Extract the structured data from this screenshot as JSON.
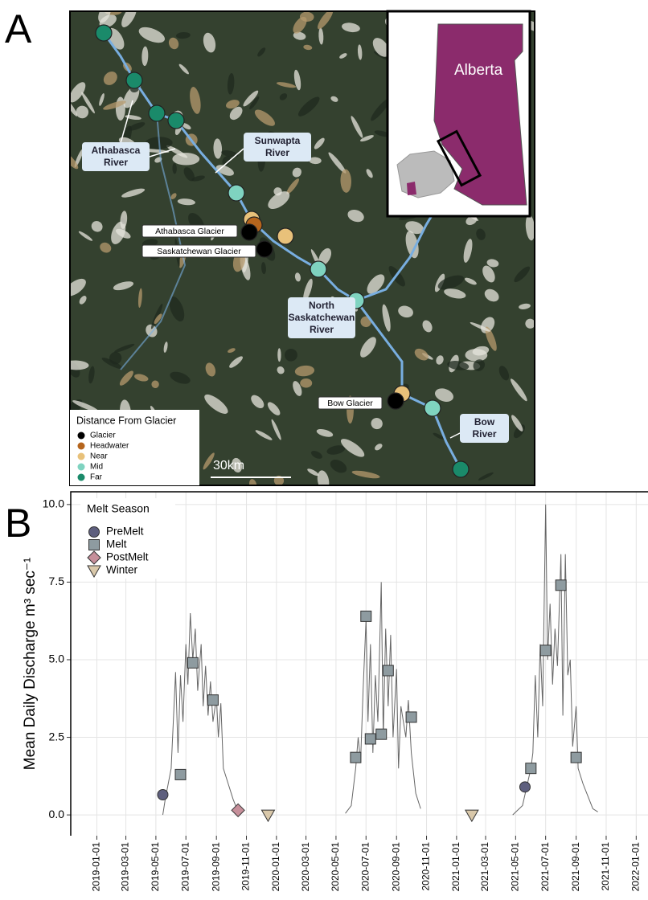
{
  "panel_a": {
    "label": "A",
    "river_labels": [
      {
        "lines": [
          "Athabasca",
          "River"
        ]
      },
      {
        "lines": [
          "Sunwapta",
          "River"
        ]
      },
      {
        "lines": [
          "North",
          "Saskatchewan",
          "River"
        ]
      },
      {
        "lines": [
          "Bow",
          "River"
        ]
      }
    ],
    "glacier_labels": [
      "Athabasca Glacier",
      "Saskatchewan Glacier",
      "Bow Glacier"
    ],
    "legend": {
      "title": "Distance From Glacier",
      "items": [
        "Glacier",
        "Headwater",
        "Near",
        "Mid",
        "Far"
      ]
    },
    "scale_bar": "30km",
    "inset_label": "Alberta"
  },
  "panel_b": {
    "label": "B"
  },
  "chart_data": {
    "type": "line",
    "ylabel": "Mean Daily Discharge m³ sec⁻¹",
    "legend_title": "Melt Season",
    "xlim": [
      "2018-11-09",
      "2022-01-25"
    ],
    "xticks": [
      "2019-01-01",
      "2019-03-01",
      "2019-05-01",
      "2019-07-01",
      "2019-09-01",
      "2019-11-01",
      "2020-01-01",
      "2020-03-01",
      "2020-05-01",
      "2020-07-01",
      "2020-09-01",
      "2020-11-01",
      "2021-01-01",
      "2021-03-01",
      "2021-05-01",
      "2021-07-01",
      "2021-09-01",
      "2021-11-01",
      "2022-01-01"
    ],
    "ylim": [
      -0.67,
      10.41
    ],
    "yticks": [
      {
        "value": 0,
        "label": "0.0"
      },
      {
        "value": 2.5,
        "label": "2.5"
      },
      {
        "value": 5,
        "label": "5.0"
      },
      {
        "value": 7.5,
        "label": "7.5"
      },
      {
        "value": 10,
        "label": "10.0"
      }
    ],
    "grid": true,
    "series": [
      {
        "color": "#666666",
        "x": [
          "2019-05-15",
          "2019-05-20",
          "2019-06-01",
          "2019-06-10",
          "2019-06-15",
          "2019-06-20",
          "2019-06-25",
          "2019-07-01",
          "2019-07-05",
          "2019-07-10",
          "2019-07-15",
          "2019-07-20",
          "2019-07-25",
          "2019-08-01",
          "2019-08-05",
          "2019-08-10",
          "2019-08-15",
          "2019-08-20",
          "2019-08-25",
          "2019-09-01",
          "2019-09-05",
          "2019-09-10",
          "2019-09-15",
          "2019-09-25",
          "2019-10-05",
          "2019-10-15",
          "2020-01-01",
          "2020-05-20",
          "2020-06-01",
          "2020-06-10",
          "2020-06-15",
          "2020-06-20",
          "2020-06-25",
          "2020-07-01",
          "2020-07-05",
          "2020-07-10",
          "2020-07-15",
          "2020-07-20",
          "2020-07-25",
          "2020-08-01",
          "2020-08-05",
          "2020-08-10",
          "2020-08-15",
          "2020-08-20",
          "2020-08-25",
          "2020-09-01",
          "2020-09-05",
          "2020-09-10",
          "2020-09-20",
          "2020-09-25",
          "2020-10-01",
          "2020-10-10",
          "2020-10-20",
          "2021-01-01",
          "2021-04-25",
          "2021-05-15",
          "2021-05-25",
          "2021-06-01",
          "2021-06-05",
          "2021-06-10",
          "2021-06-15",
          "2021-06-20",
          "2021-06-25",
          "2021-07-01",
          "2021-07-05",
          "2021-07-10",
          "2021-07-15",
          "2021-07-20",
          "2021-07-25",
          "2021-08-01",
          "2021-08-05",
          "2021-08-10",
          "2021-08-15",
          "2021-08-20",
          "2021-08-25",
          "2021-09-01",
          "2021-09-05",
          "2021-09-15",
          "2021-09-25",
          "2021-10-05",
          "2021-10-15"
        ],
        "values": [
          0,
          0.5,
          1.5,
          4.6,
          2.0,
          4.5,
          3.0,
          5.5,
          4.2,
          6.5,
          5.0,
          6.0,
          4.0,
          5.5,
          3.5,
          4.8,
          3.2,
          4.3,
          3.0,
          3.8,
          2.5,
          3.6,
          1.5,
          1.0,
          0.5,
          0.1,
          null,
          0.05,
          0.3,
          1.5,
          2.5,
          1.7,
          4.0,
          6.3,
          3.0,
          5.5,
          2.0,
          4.5,
          3.0,
          7.5,
          2.5,
          6.0,
          3.5,
          5.8,
          2.5,
          4.7,
          1.5,
          3.5,
          2.5,
          3.7,
          2.0,
          0.7,
          0.2,
          null,
          0,
          0.3,
          1.0,
          1.5,
          2.0,
          4.5,
          2.5,
          5.5,
          3.5,
          10.0,
          5.0,
          6.8,
          4.2,
          6.0,
          4.8,
          8.4,
          3.2,
          8.4,
          4.5,
          5.0,
          2.2,
          3.5,
          1.5,
          1.0,
          0.6,
          0.2,
          0.1
        ]
      },
      {
        "name": "PreMelt",
        "color": "#5e5f7e",
        "marker": "circle",
        "x": [
          "2019-05-15",
          "2021-05-20"
        ],
        "values": [
          0.65,
          0.9
        ]
      },
      {
        "name": "Melt",
        "color": "#8e9ba0",
        "marker": "square",
        "x": [
          "2019-06-20",
          "2019-07-15",
          "2019-08-25",
          "2020-06-10",
          "2020-07-01",
          "2020-07-10",
          "2020-08-01",
          "2020-08-15",
          "2020-10-01",
          "2021-06-01",
          "2021-07-01",
          "2021-08-01",
          "2021-09-01"
        ],
        "values": [
          1.3,
          4.9,
          3.7,
          1.85,
          6.4,
          2.45,
          2.6,
          4.65,
          3.15,
          1.5,
          5.3,
          7.4,
          1.85
        ]
      },
      {
        "name": "PostMelt",
        "color": "#c68f9a",
        "marker": "diamond",
        "x": [
          "2019-10-15"
        ],
        "values": [
          0.15
        ]
      },
      {
        "name": "Winter",
        "color": "#d9c8aa",
        "marker": "triangle",
        "x": [
          "2019-12-15",
          "2021-02-01"
        ],
        "values": [
          0,
          0
        ]
      }
    ]
  }
}
